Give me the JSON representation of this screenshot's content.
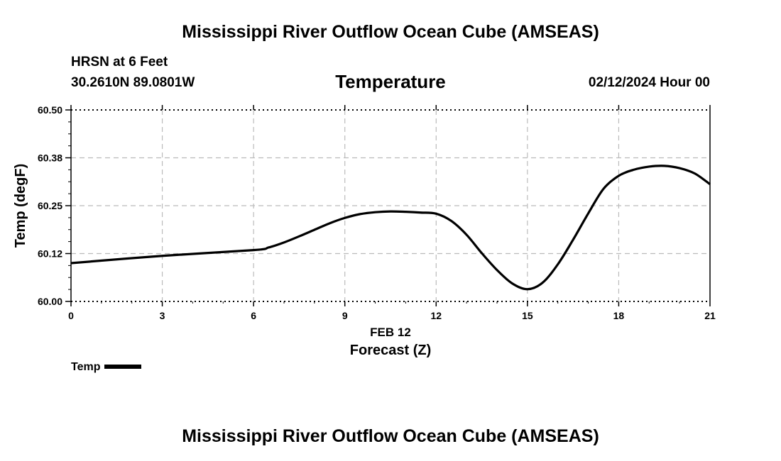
{
  "page": {
    "title_top": "Mississippi River Outflow Ocean Cube (AMSEAS)",
    "title_bottom": "Mississippi River Outflow Ocean Cube (AMSEAS)",
    "station": "HRSN at 6 Feet",
    "coords": "30.2610N  89.0801W",
    "date": "02/12/2024 Hour 00"
  },
  "chart_data": {
    "type": "line",
    "title": "Temperature",
    "xlabel": "Forecast (Z)",
    "xlabel_date": "FEB 12",
    "ylabel": "Temp (degF)",
    "xlim": [
      0,
      21
    ],
    "ylim": [
      60.0,
      60.5
    ],
    "xticks": [
      0,
      3,
      6,
      9,
      12,
      15,
      18,
      21
    ],
    "xtick_labels": [
      "0",
      "3",
      "6",
      "9",
      "12",
      "15",
      "18",
      "21"
    ],
    "yticks": [
      60.0,
      60.125,
      60.25,
      60.375,
      60.5
    ],
    "ytick_labels": [
      "60.00",
      "60.12",
      "60.25",
      "60.38",
      "60.50"
    ],
    "grid": true,
    "legend": "bottom-left",
    "series": [
      {
        "name": "Temp",
        "color": "#000000",
        "x": [
          0,
          3,
          6,
          6.5,
          7,
          7.5,
          8,
          8.5,
          9,
          9.5,
          10,
          10.5,
          11,
          11.5,
          12,
          12.5,
          13,
          13.5,
          14,
          14.5,
          15,
          15.5,
          16,
          16.5,
          17,
          17.5,
          18,
          18.5,
          19,
          19.5,
          20,
          20.5,
          21
        ],
        "y": [
          60.1,
          60.119,
          60.134,
          60.141,
          60.154,
          60.17,
          60.187,
          60.204,
          60.218,
          60.228,
          60.233,
          60.235,
          60.234,
          60.232,
          60.229,
          60.21,
          60.174,
          60.126,
          60.082,
          60.047,
          60.032,
          60.049,
          60.097,
          60.161,
          60.23,
          60.294,
          60.328,
          60.344,
          60.352,
          60.354,
          60.348,
          60.334,
          60.306
        ]
      }
    ]
  }
}
